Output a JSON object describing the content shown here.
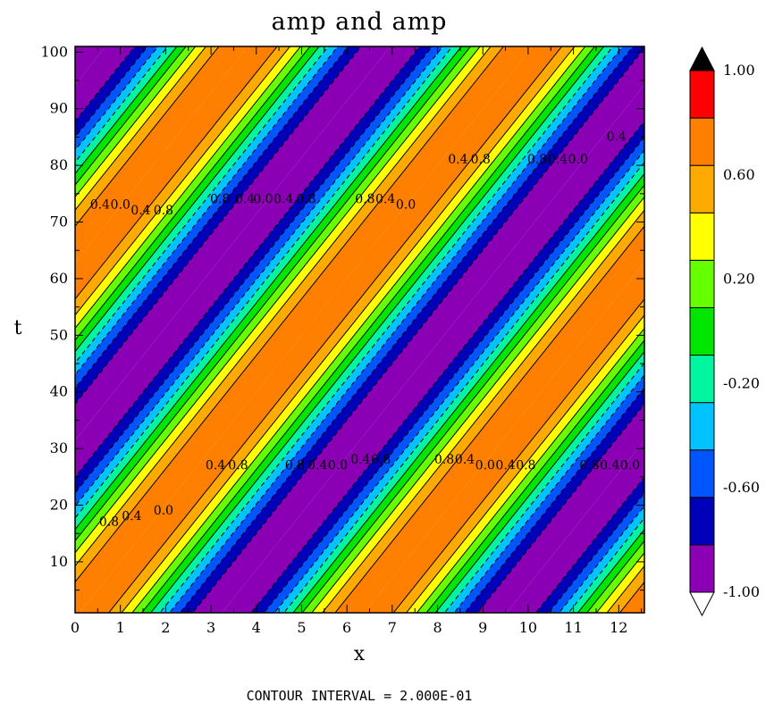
{
  "chart_data": {
    "type": "heatmap",
    "title": "amp and amp",
    "xlabel": "x",
    "ylabel": "t",
    "xlim": [
      0,
      12.566
    ],
    "ylim": [
      1,
      101
    ],
    "x_ticks": [
      "0",
      "1",
      "2",
      "3",
      "4",
      "5",
      "6",
      "7",
      "8",
      "9",
      "10",
      "11",
      "12"
    ],
    "y_ticks": [
      "10",
      "20",
      "30",
      "40",
      "50",
      "60",
      "70",
      "80",
      "90",
      "100"
    ],
    "field": "cos(x - 0.1*t)",
    "contour_interval_label": "CONTOUR INTERVAL = 2.000E-01",
    "contour_levels": [
      -0.8,
      -0.6,
      -0.4,
      -0.2,
      0.0,
      0.2,
      0.4,
      0.6,
      0.8
    ],
    "contour_labels": [
      {
        "text": "0.4",
        "x": 0.55,
        "t": 73
      },
      {
        "text": "0.0",
        "x": 1.0,
        "t": 73
      },
      {
        "text": "0.4",
        "x": 1.45,
        "t": 72
      },
      {
        "text": "0.8",
        "x": 1.95,
        "t": 72
      },
      {
        "text": "0.8",
        "x": 3.2,
        "t": 74
      },
      {
        "text": "0.4",
        "x": 3.75,
        "t": 74
      },
      {
        "text": "0.0",
        "x": 4.15,
        "t": 74
      },
      {
        "text": "0.4",
        "x": 4.6,
        "t": 74
      },
      {
        "text": "0.8",
        "x": 5.1,
        "t": 74
      },
      {
        "text": "0.8",
        "x": 6.4,
        "t": 74
      },
      {
        "text": "0.4",
        "x": 6.85,
        "t": 74
      },
      {
        "text": "0.0",
        "x": 7.3,
        "t": 73
      },
      {
        "text": "0.4",
        "x": 8.45,
        "t": 81
      },
      {
        "text": "0.8",
        "x": 8.95,
        "t": 81
      },
      {
        "text": "0.8",
        "x": 10.2,
        "t": 81
      },
      {
        "text": "0.4",
        "x": 10.65,
        "t": 81
      },
      {
        "text": "0.0",
        "x": 11.1,
        "t": 81
      },
      {
        "text": "0.4",
        "x": 11.95,
        "t": 85
      },
      {
        "text": "0.8",
        "x": 0.75,
        "t": 17
      },
      {
        "text": "0.4",
        "x": 1.25,
        "t": 18
      },
      {
        "text": "0.0",
        "x": 1.95,
        "t": 19
      },
      {
        "text": "0.4",
        "x": 3.1,
        "t": 27
      },
      {
        "text": "0.8",
        "x": 3.6,
        "t": 27
      },
      {
        "text": "0.8",
        "x": 4.85,
        "t": 27
      },
      {
        "text": "0.4",
        "x": 5.35,
        "t": 27
      },
      {
        "text": "0.0",
        "x": 5.8,
        "t": 27
      },
      {
        "text": "0.4",
        "x": 6.3,
        "t": 28
      },
      {
        "text": "0.8",
        "x": 6.75,
        "t": 28
      },
      {
        "text": "0.8",
        "x": 8.15,
        "t": 28
      },
      {
        "text": "0.4",
        "x": 8.6,
        "t": 28
      },
      {
        "text": "0.0",
        "x": 9.05,
        "t": 27
      },
      {
        "text": "0.4",
        "x": 9.5,
        "t": 27
      },
      {
        "text": "0.8",
        "x": 9.95,
        "t": 27
      },
      {
        "text": "0.8",
        "x": 11.35,
        "t": 27
      },
      {
        "text": "0.4",
        "x": 11.8,
        "t": 27
      },
      {
        "text": "0.0",
        "x": 12.25,
        "t": 27
      }
    ],
    "colorbar": {
      "labels": [
        "1.00",
        "0.60",
        "0.20",
        "-0.20",
        "-0.60",
        "-1.00"
      ],
      "colors": [
        "#8b00b5",
        "#0000b8",
        "#0055ff",
        "#00c3ff",
        "#00f5a0",
        "#00e600",
        "#66ff00",
        "#ffff00",
        "#ffaa00",
        "#ff8000",
        "#ff0000"
      ],
      "over_color": "#000000",
      "under_color": "#ffffff"
    }
  }
}
